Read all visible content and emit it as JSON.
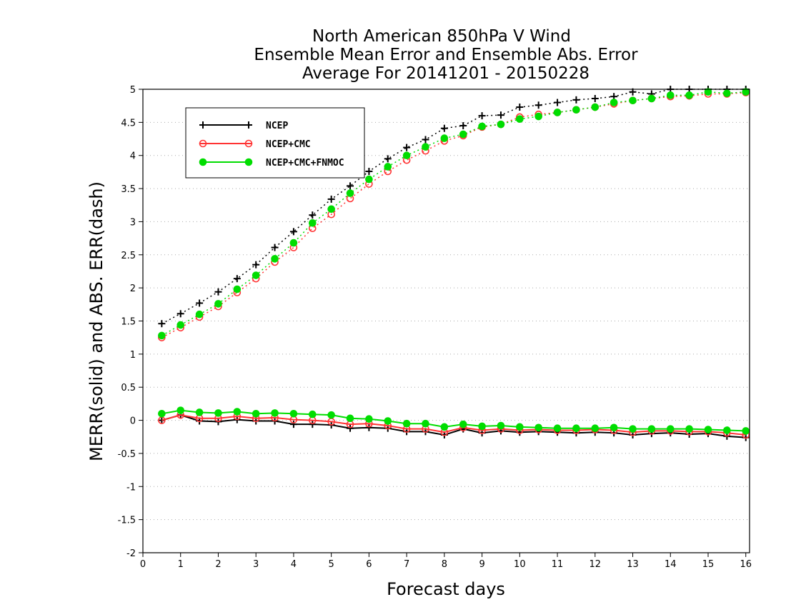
{
  "chart_data": {
    "type": "line",
    "title": [
      "North American 850hPa V Wind",
      "Ensemble Mean Error and Ensemble Abs. Error",
      "Average For 20141201 - 20150228"
    ],
    "xlabel": "Forecast days",
    "ylabel": "MERR(solid) and ABS. ERR(dash)",
    "xlim": [
      0,
      16.1
    ],
    "ylim": [
      -2,
      5
    ],
    "xticks": [
      0,
      1,
      2,
      3,
      4,
      5,
      6,
      7,
      8,
      9,
      10,
      11,
      12,
      13,
      14,
      15,
      16
    ],
    "yticks": [
      -2,
      -1.5,
      -1,
      -0.5,
      0,
      0.5,
      1,
      1.5,
      2,
      2.5,
      3,
      3.5,
      4,
      4.5,
      5
    ],
    "ytick_labels": [
      "-2",
      "-1.5",
      "-1",
      "-0.5",
      "0",
      "0.5",
      "1",
      "1.5",
      "2",
      "2.5",
      "3",
      "3.5",
      "4",
      "4.5",
      "5"
    ],
    "grid": "horizontal dotted",
    "legend_position": "upper-left",
    "x": [
      0.5,
      1,
      1.5,
      2,
      2.5,
      3,
      3.5,
      4,
      4.5,
      5,
      5.5,
      6,
      6.5,
      7,
      7.5,
      8,
      8.5,
      9,
      9.5,
      10,
      10.5,
      11,
      11.5,
      12,
      12.5,
      13,
      13.5,
      14,
      14.5,
      15,
      15.5,
      16
    ],
    "series": [
      {
        "name": "NCEP",
        "color": "#000000",
        "marker": "plus",
        "merr": [
          0.0,
          0.08,
          -0.01,
          -0.02,
          0.01,
          -0.01,
          -0.01,
          -0.06,
          -0.06,
          -0.07,
          -0.12,
          -0.11,
          -0.12,
          -0.17,
          -0.17,
          -0.22,
          -0.13,
          -0.19,
          -0.16,
          -0.18,
          -0.17,
          -0.18,
          -0.19,
          -0.18,
          -0.19,
          -0.22,
          -0.2,
          -0.19,
          -0.21,
          -0.2,
          -0.24,
          -0.26
        ],
        "abs_err": [
          1.46,
          1.61,
          1.77,
          1.94,
          2.14,
          2.35,
          2.61,
          2.85,
          3.1,
          3.34,
          3.54,
          3.76,
          3.95,
          4.12,
          4.24,
          4.41,
          4.45,
          4.6,
          4.61,
          4.73,
          4.76,
          4.8,
          4.84,
          4.86,
          4.89,
          4.96,
          4.93,
          5.0,
          5.0,
          5.0,
          5.0,
          5.0
        ]
      },
      {
        "name": "NCEP+CMC",
        "color": "#ff3333",
        "marker": "open-circle",
        "merr": [
          0.0,
          0.08,
          0.03,
          0.03,
          0.06,
          0.03,
          0.04,
          0.01,
          0.0,
          -0.02,
          -0.06,
          -0.05,
          -0.08,
          -0.13,
          -0.13,
          -0.18,
          -0.11,
          -0.15,
          -0.13,
          -0.15,
          -0.14,
          -0.15,
          -0.15,
          -0.14,
          -0.15,
          -0.18,
          -0.16,
          -0.16,
          -0.17,
          -0.17,
          -0.19,
          -0.22
        ],
        "abs_err": [
          1.25,
          1.4,
          1.56,
          1.72,
          1.93,
          2.14,
          2.39,
          2.61,
          2.9,
          3.11,
          3.35,
          3.57,
          3.76,
          3.93,
          4.07,
          4.22,
          4.3,
          4.43,
          4.47,
          4.58,
          4.62,
          4.65,
          4.69,
          4.73,
          4.78,
          4.83,
          4.86,
          4.89,
          4.9,
          4.93,
          4.93,
          4.95
        ]
      },
      {
        "name": "NCEP+CMC+FNMOC",
        "color": "#00dd00",
        "marker": "filled-circle",
        "merr": [
          0.1,
          0.15,
          0.12,
          0.11,
          0.13,
          0.1,
          0.11,
          0.1,
          0.09,
          0.08,
          0.03,
          0.02,
          -0.01,
          -0.05,
          -0.05,
          -0.1,
          -0.06,
          -0.09,
          -0.08,
          -0.1,
          -0.11,
          -0.12,
          -0.12,
          -0.12,
          -0.11,
          -0.13,
          -0.13,
          -0.13,
          -0.13,
          -0.14,
          -0.15,
          -0.16
        ],
        "abs_err": [
          1.28,
          1.44,
          1.6,
          1.76,
          1.98,
          2.19,
          2.44,
          2.68,
          2.98,
          3.19,
          3.43,
          3.64,
          3.83,
          4.0,
          4.13,
          4.26,
          4.32,
          4.44,
          4.47,
          4.55,
          4.59,
          4.65,
          4.69,
          4.73,
          4.8,
          4.83,
          4.86,
          4.91,
          4.91,
          4.96,
          4.94,
          4.96
        ]
      }
    ]
  }
}
